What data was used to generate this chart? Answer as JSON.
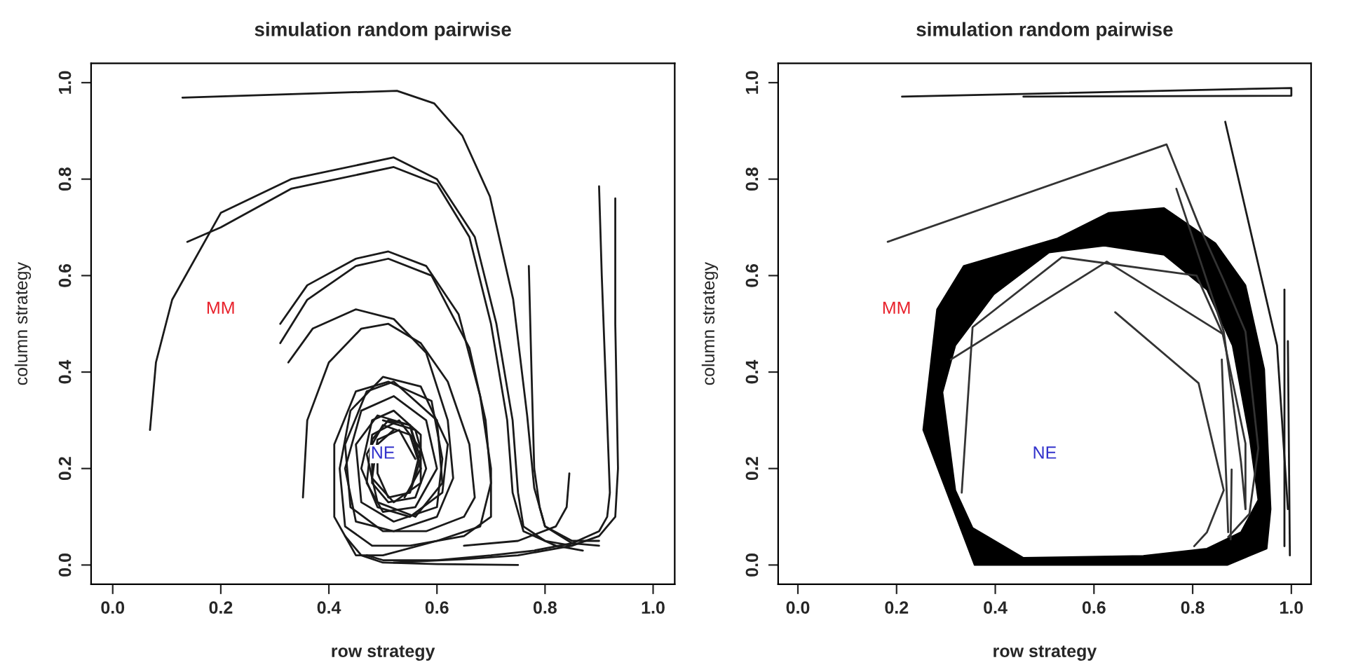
{
  "chart_data": [
    {
      "type": "line",
      "title": "simulation random pairwise",
      "xlabel": "row strategy",
      "ylabel": "column strategy",
      "xlim": [
        -0.04,
        1.04
      ],
      "ylim": [
        -0.04,
        1.04
      ],
      "xticks": [
        {
          "value": 0,
          "label": "0.0"
        },
        {
          "value": 0.2,
          "label": "0.2"
        },
        {
          "value": 0.4,
          "label": "0.4"
        },
        {
          "value": 0.6,
          "label": "0.6"
        },
        {
          "value": 0.8,
          "label": "0.8"
        },
        {
          "value": 1,
          "label": "1.0"
        }
      ],
      "yticks": [
        {
          "value": 0,
          "label": "0.0"
        },
        {
          "value": 0.2,
          "label": "0.2"
        },
        {
          "value": 0.4,
          "label": "0.4"
        },
        {
          "value": 0.6,
          "label": "0.6"
        },
        {
          "value": 0.8,
          "label": "0.8"
        },
        {
          "value": 1,
          "label": "1.0"
        }
      ],
      "grid": false,
      "legend": false,
      "marker": "none",
      "line_style": "solid",
      "annotations": [
        "MM",
        "NE"
      ],
      "series": [
        {
          "color": "#1a1a1a",
          "x": [
            0.129,
            0.3,
            0.526,
            0.595,
            0.647,
            0.698,
            0.741,
            0.767,
            0.78,
            0.8,
            0.85,
            0.9
          ],
          "values": [
            0.969,
            0.975,
            0.983,
            0.957,
            0.89,
            0.764,
            0.551,
            0.309,
            0.16,
            0.08,
            0.045,
            0.04
          ]
        },
        {
          "type": "line",
          "color": "#1a1a1a",
          "x": [
            0.069,
            0.08,
            0.11,
            0.2,
            0.33,
            0.52,
            0.6,
            0.67,
            0.71,
            0.74,
            0.75,
            0.76,
            0.8,
            0.85
          ],
          "values": [
            0.28,
            0.42,
            0.55,
            0.73,
            0.8,
            0.845,
            0.8,
            0.68,
            0.5,
            0.3,
            0.15,
            0.08,
            0.05,
            0.04
          ]
        },
        {
          "type": "line",
          "color": "#1a1a1a",
          "x": [
            0.138,
            0.2,
            0.33,
            0.52,
            0.6,
            0.66,
            0.7,
            0.73,
            0.74,
            0.76,
            0.82,
            0.87
          ],
          "values": [
            0.67,
            0.7,
            0.78,
            0.825,
            0.79,
            0.68,
            0.5,
            0.3,
            0.15,
            0.07,
            0.04,
            0.03
          ]
        },
        {
          "type": "line",
          "color": "#1a1a1a",
          "x": [
            0.31,
            0.36,
            0.45,
            0.51,
            0.58,
            0.64,
            0.68,
            0.7,
            0.7,
            0.65,
            0.55,
            0.48,
            0.43,
            0.42,
            0.44,
            0.5,
            0.57,
            0.62,
            0.61,
            0.55,
            0.49,
            0.46,
            0.48,
            0.52,
            0.57,
            0.57,
            0.52,
            0.48,
            0.49,
            0.53,
            0.56
          ],
          "values": [
            0.5,
            0.58,
            0.635,
            0.65,
            0.62,
            0.52,
            0.35,
            0.2,
            0.1,
            0.06,
            0.04,
            0.04,
            0.08,
            0.2,
            0.32,
            0.39,
            0.37,
            0.25,
            0.15,
            0.1,
            0.12,
            0.2,
            0.3,
            0.32,
            0.27,
            0.17,
            0.13,
            0.18,
            0.26,
            0.28,
            0.22
          ]
        },
        {
          "type": "line",
          "color": "#1a1a1a",
          "x": [
            0.31,
            0.36,
            0.45,
            0.51,
            0.59,
            0.66,
            0.69,
            0.7,
            0.68,
            0.6,
            0.5,
            0.45,
            0.41,
            0.41,
            0.45,
            0.51,
            0.59,
            0.61,
            0.6,
            0.52,
            0.46,
            0.45,
            0.49,
            0.55,
            0.57,
            0.54
          ],
          "values": [
            0.46,
            0.55,
            0.62,
            0.635,
            0.6,
            0.45,
            0.3,
            0.17,
            0.08,
            0.05,
            0.02,
            0.02,
            0.1,
            0.25,
            0.36,
            0.38,
            0.34,
            0.22,
            0.12,
            0.09,
            0.13,
            0.25,
            0.31,
            0.29,
            0.2,
            0.14
          ]
        },
        {
          "type": "line",
          "color": "#1a1a1a",
          "x": [
            0.325,
            0.37,
            0.45,
            0.52,
            0.58,
            0.62,
            0.63,
            0.6,
            0.52,
            0.45,
            0.43,
            0.46,
            0.52,
            0.58,
            0.6,
            0.56,
            0.5,
            0.47,
            0.48,
            0.53,
            0.57,
            0.55
          ],
          "values": [
            0.42,
            0.49,
            0.53,
            0.51,
            0.44,
            0.3,
            0.18,
            0.1,
            0.07,
            0.09,
            0.2,
            0.32,
            0.35,
            0.3,
            0.2,
            0.12,
            0.11,
            0.17,
            0.27,
            0.3,
            0.24,
            0.15
          ]
        },
        {
          "type": "line",
          "color": "#1a1a1a",
          "x": [
            0.352,
            0.36,
            0.4,
            0.46,
            0.51,
            0.57,
            0.62,
            0.66,
            0.67,
            0.65,
            0.58,
            0.5,
            0.44,
            0.43,
            0.47,
            0.52,
            0.6,
            0.61,
            0.56,
            0.49,
            0.47,
            0.5,
            0.55,
            0.57
          ],
          "values": [
            0.14,
            0.3,
            0.42,
            0.49,
            0.5,
            0.46,
            0.38,
            0.25,
            0.14,
            0.1,
            0.07,
            0.07,
            0.12,
            0.25,
            0.36,
            0.38,
            0.3,
            0.17,
            0.1,
            0.13,
            0.23,
            0.29,
            0.27,
            0.2
          ]
        },
        {
          "type": "line",
          "color": "#1a1a1a",
          "x": [
            0.5,
            0.56,
            0.58,
            0.56,
            0.51,
            0.48,
            0.48,
            0.51,
            0.55,
            0.57,
            0.55,
            0.51,
            0.49,
            0.49,
            0.52
          ],
          "values": [
            0.3,
            0.28,
            0.2,
            0.14,
            0.13,
            0.17,
            0.26,
            0.3,
            0.29,
            0.22,
            0.15,
            0.14,
            0.19,
            0.25,
            0.28
          ]
        },
        {
          "type": "line",
          "color": "#1a1a1a",
          "x": [
            0.9,
            0.905,
            0.915,
            0.92,
            0.915,
            0.9,
            0.85,
            0.78,
            0.7,
            0.6,
            0.5,
            0.47
          ],
          "values": [
            0.785,
            0.6,
            0.3,
            0.15,
            0.1,
            0.07,
            0.045,
            0.03,
            0.02,
            0.01,
            0.01,
            0.02
          ]
        },
        {
          "type": "line",
          "color": "#1a1a1a",
          "x": [
            0.93,
            0.93,
            0.935,
            0.93,
            0.9,
            0.85,
            0.75,
            0.65,
            0.52
          ],
          "values": [
            0.76,
            0.5,
            0.2,
            0.1,
            0.06,
            0.04,
            0.02,
            0.012,
            0.005
          ]
        },
        {
          "type": "line",
          "color": "#1a1a1a",
          "x": [
            0.77,
            0.775,
            0.78,
            0.79,
            0.8,
            0.85,
            0.9
          ],
          "values": [
            0.62,
            0.4,
            0.2,
            0.12,
            0.08,
            0.05,
            0.05
          ]
        },
        {
          "type": "line",
          "color": "#1a1a1a",
          "x": [
            0.845,
            0.84,
            0.82,
            0.75,
            0.65
          ],
          "values": [
            0.19,
            0.12,
            0.08,
            0.05,
            0.04
          ]
        },
        {
          "type": "line",
          "color": "#1a1a1a",
          "x": [
            0.75,
            0.6,
            0.5,
            0.46,
            0.43
          ],
          "values": [
            0.0,
            0.002,
            0.005,
            0.02,
            0.06
          ]
        }
      ]
    },
    {
      "type": "line",
      "title": "simulation random pairwise",
      "xlabel": "row strategy",
      "ylabel": "column strategy",
      "xlim": [
        -0.04,
        1.04
      ],
      "ylim": [
        -0.04,
        1.04
      ],
      "xticks": [
        {
          "value": 0,
          "label": "0.0"
        },
        {
          "value": 0.2,
          "label": "0.2"
        },
        {
          "value": 0.4,
          "label": "0.4"
        },
        {
          "value": 0.6,
          "label": "0.6"
        },
        {
          "value": 0.8,
          "label": "0.8"
        },
        {
          "value": 1,
          "label": "1.0"
        }
      ],
      "yticks": [
        {
          "value": 0,
          "label": "0.0"
        },
        {
          "value": 0.2,
          "label": "0.2"
        },
        {
          "value": 0.4,
          "label": "0.4"
        },
        {
          "value": 0.6,
          "label": "0.6"
        },
        {
          "value": 0.8,
          "label": "0.8"
        },
        {
          "value": 1,
          "label": "1.0"
        }
      ],
      "grid": false,
      "legend": false,
      "marker": "none",
      "line_style": "solid",
      "annotations": [
        "MM",
        "NE"
      ],
      "series": [
        {
          "type": "area",
          "color": "#000000",
          "x": [
            0.358,
            0.87,
            0.95,
            0.958,
            0.945,
            0.907,
            0.846,
            0.742,
            0.63,
            0.526,
            0.336,
            0.282,
            0.254,
            0.358,
            0.457,
            0.354,
            0.319,
            0.293,
            0.319,
            0.397,
            0.509,
            0.621,
            0.742,
            0.829,
            0.881,
            0.916,
            0.933,
            0.898,
            0.829,
            0.7,
            0.457
          ],
          "values": [
            0.0,
            0.0,
            0.034,
            0.116,
            0.406,
            0.58,
            0.667,
            0.74,
            0.73,
            0.677,
            0.62,
            0.53,
            0.28,
            0.0,
            0.015,
            0.077,
            0.155,
            0.358,
            0.455,
            0.561,
            0.648,
            0.662,
            0.643,
            0.571,
            0.455,
            0.261,
            0.135,
            0.068,
            0.034,
            0.019,
            0.015
          ]
        },
        {
          "type": "line",
          "color": "#1a1a1a",
          "x": [
            0.211,
            1.0,
            1.0,
            0.457
          ],
          "values": [
            0.971,
            0.989,
            0.973,
            0.971
          ]
        },
        {
          "type": "line",
          "color": "#333333",
          "x": [
            0.182,
            0.747,
            0.812,
            0.863,
            0.907,
            0.933,
            0.915,
            0.872
          ],
          "values": [
            0.67,
            0.872,
            0.706,
            0.59,
            0.484,
            0.242,
            0.106,
            0.058
          ]
        },
        {
          "type": "line",
          "color": "#1a1a1a",
          "x": [
            0.866,
            0.971,
            0.993
          ],
          "values": [
            0.919,
            0.455,
            0.116
          ]
        },
        {
          "type": "line",
          "color": "#333333",
          "x": [
            0.643,
            0.812,
            0.863,
            0.829,
            0.803
          ],
          "values": [
            0.524,
            0.377,
            0.155,
            0.068,
            0.039
          ]
        },
        {
          "type": "line",
          "color": "#333333",
          "x": [
            0.767,
            0.863,
            0.898,
            0.907
          ],
          "values": [
            0.78,
            0.484,
            0.213,
            0.116
          ]
        },
        {
          "type": "line",
          "color": "#333333",
          "x": [
            0.332,
            0.354,
            0.535,
            0.808,
            0.863
          ],
          "values": [
            0.15,
            0.493,
            0.638,
            0.6,
            0.474
          ]
        },
        {
          "type": "line",
          "color": "#333333",
          "x": [
            0.31,
            0.626,
            0.861,
            0.907,
            0.907
          ],
          "values": [
            0.426,
            0.629,
            0.479,
            0.252,
            0.116
          ]
        },
        {
          "type": "line",
          "color": "#1a1a1a",
          "x": [
            0.986,
            0.986
          ],
          "values": [
            0.571,
            0.039
          ]
        },
        {
          "type": "line",
          "color": "#1a1a1a",
          "x": [
            0.993,
            0.997
          ],
          "values": [
            0.464,
            0.02
          ]
        },
        {
          "type": "line",
          "color": "#333333",
          "x": [
            0.859,
            0.872
          ],
          "values": [
            0.426,
            0.068
          ]
        },
        {
          "type": "line",
          "color": "#333333",
          "x": [
            0.879,
            0.877
          ],
          "values": [
            0.198,
            0.053
          ]
        }
      ]
    }
  ]
}
